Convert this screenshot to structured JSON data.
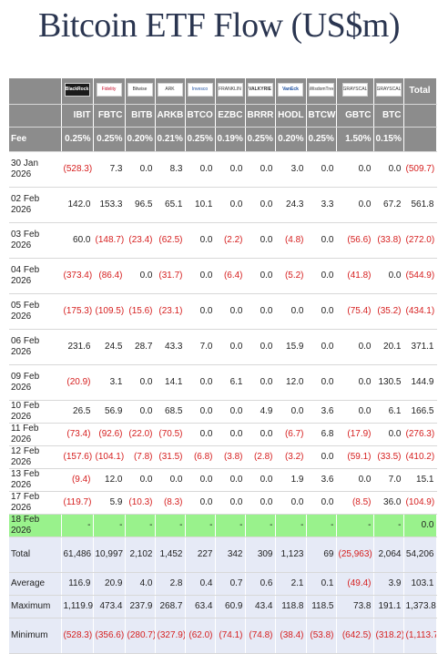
{
  "title": "Bitcoin ETF Flow (US$m)",
  "issuers": [
    {
      "logo": "icon-blackrock",
      "text": "BlackRock"
    },
    {
      "logo": "icon-fidelity",
      "text": "Fidelity"
    },
    {
      "logo": "icon-bitwise",
      "text": "Bitwise"
    },
    {
      "logo": "icon-ark",
      "text": "ARK"
    },
    {
      "logo": "icon-invesco",
      "text": "Invesco"
    },
    {
      "logo": "icon-franklin",
      "text": "FRANKLIN"
    },
    {
      "logo": "icon-valkyrie",
      "text": "VALKYRIE"
    },
    {
      "logo": "icon-vaneck",
      "text": "VanEck"
    },
    {
      "logo": "icon-wisdomtree",
      "text": "WisdomTree"
    },
    {
      "logo": "icon-grayscale",
      "text": "GRAYSCALE"
    },
    {
      "logo": "icon-grayscale",
      "text": "GRAYSCALE"
    }
  ],
  "total_header": "Total",
  "tickers": [
    "IBIT",
    "FBTC",
    "BITB",
    "ARKB",
    "BTCO",
    "EZBC",
    "BRRR",
    "HODL",
    "BTCW",
    "GBTC",
    "BTC"
  ],
  "fee": {
    "label": "Fee",
    "values": [
      "0.25%",
      "0.25%",
      "0.20%",
      "0.21%",
      "0.25%",
      "0.19%",
      "0.25%",
      "0.20%",
      "0.25%",
      "1.50%",
      "0.15%"
    ]
  },
  "rows": [
    {
      "date": "30 Jan 2026",
      "values": [
        "(528.3)",
        "7.3",
        "0.0",
        "8.3",
        "0.0",
        "0.0",
        "0.0",
        "3.0",
        "0.0",
        "0.0",
        "0.0"
      ],
      "total": "(509.7)"
    },
    {
      "date": "02 Feb 2026",
      "values": [
        "142.0",
        "153.3",
        "96.5",
        "65.1",
        "10.1",
        "0.0",
        "0.0",
        "24.3",
        "3.3",
        "0.0",
        "67.2"
      ],
      "total": "561.8"
    },
    {
      "date": "03 Feb 2026",
      "values": [
        "60.0",
        "(148.7)",
        "(23.4)",
        "(62.5)",
        "0.0",
        "(2.2)",
        "0.0",
        "(4.8)",
        "0.0",
        "(56.6)",
        "(33.8)"
      ],
      "total": "(272.0)"
    },
    {
      "date": "04 Feb 2026",
      "values": [
        "(373.4)",
        "(86.4)",
        "0.0",
        "(31.7)",
        "0.0",
        "(6.4)",
        "0.0",
        "(5.2)",
        "0.0",
        "(41.8)",
        "0.0"
      ],
      "total": "(544.9)"
    },
    {
      "date": "05 Feb 2026",
      "values": [
        "(175.3)",
        "(109.5)",
        "(15.6)",
        "(23.1)",
        "0.0",
        "0.0",
        "0.0",
        "0.0",
        "0.0",
        "(75.4)",
        "(35.2)"
      ],
      "total": "(434.1)"
    },
    {
      "date": "06 Feb 2026",
      "values": [
        "231.6",
        "24.5",
        "28.7",
        "43.3",
        "7.0",
        "0.0",
        "0.0",
        "15.9",
        "0.0",
        "0.0",
        "20.1"
      ],
      "total": "371.1"
    },
    {
      "date": "09 Feb 2026",
      "values": [
        "(20.9)",
        "3.1",
        "0.0",
        "14.1",
        "0.0",
        "6.1",
        "0.0",
        "12.0",
        "0.0",
        "0.0",
        "130.5"
      ],
      "total": "144.9"
    },
    {
      "date": "10 Feb 2026",
      "values": [
        "26.5",
        "56.9",
        "0.0",
        "68.5",
        "0.0",
        "0.0",
        "4.9",
        "0.0",
        "3.6",
        "0.0",
        "6.1"
      ],
      "total": "166.5"
    },
    {
      "date": "11 Feb 2026",
      "values": [
        "(73.4)",
        "(92.6)",
        "(22.0)",
        "(70.5)",
        "0.0",
        "0.0",
        "0.0",
        "(6.7)",
        "6.8",
        "(17.9)",
        "0.0"
      ],
      "total": "(276.3)"
    },
    {
      "date": "12 Feb 2026",
      "values": [
        "(157.6)",
        "(104.1)",
        "(7.8)",
        "(31.5)",
        "(6.8)",
        "(3.8)",
        "(2.8)",
        "(3.2)",
        "0.0",
        "(59.1)",
        "(33.5)"
      ],
      "total": "(410.2)"
    },
    {
      "date": "13 Feb 2026",
      "values": [
        "(9.4)",
        "12.0",
        "0.0",
        "0.0",
        "0.0",
        "0.0",
        "0.0",
        "1.9",
        "3.6",
        "0.0",
        "7.0"
      ],
      "total": "15.1"
    },
    {
      "date": "17 Feb 2026",
      "values": [
        "(119.7)",
        "5.9",
        "(10.3)",
        "(8.3)",
        "0.0",
        "0.0",
        "0.0",
        "0.0",
        "0.0",
        "(8.5)",
        "36.0"
      ],
      "total": "(104.9)"
    },
    {
      "date": "18 Feb 2026",
      "values": [
        "-",
        "-",
        "-",
        "-",
        "-",
        "-",
        "-",
        "-",
        "-",
        "-",
        "-"
      ],
      "total": "0.0"
    }
  ],
  "summary": [
    {
      "label": "Total",
      "values": [
        "61,486",
        "10,997",
        "2,102",
        "1,452",
        "227",
        "342",
        "309",
        "1,123",
        "69",
        "(25,963)",
        "2,064"
      ],
      "total": "54,206"
    },
    {
      "label": "Average",
      "values": [
        "116.9",
        "20.9",
        "4.0",
        "2.8",
        "0.4",
        "0.7",
        "0.6",
        "2.1",
        "0.1",
        "(49.4)",
        "3.9"
      ],
      "total": "103.1"
    },
    {
      "label": "Maximum",
      "values": [
        "1,119.9",
        "473.4",
        "237.9",
        "268.7",
        "63.4",
        "60.9",
        "43.4",
        "118.8",
        "118.5",
        "73.8",
        "191.1"
      ],
      "total": "1,373.8"
    },
    {
      "label": "Minimum",
      "values": [
        "(528.3)",
        "(356.6)",
        "(280.7)",
        "(327.9)",
        "(62.0)",
        "(74.1)",
        "(74.8)",
        "(38.4)",
        "(53.8)",
        "(642.5)",
        "(318.2)"
      ],
      "total": "(1,113.7)"
    }
  ],
  "colors": {
    "header_bg": "#8c8c8c",
    "negative": "#d62020",
    "highlight_row": "#99f28c",
    "summary_bg": "#e6eaf6",
    "title": "#2a3550"
  }
}
